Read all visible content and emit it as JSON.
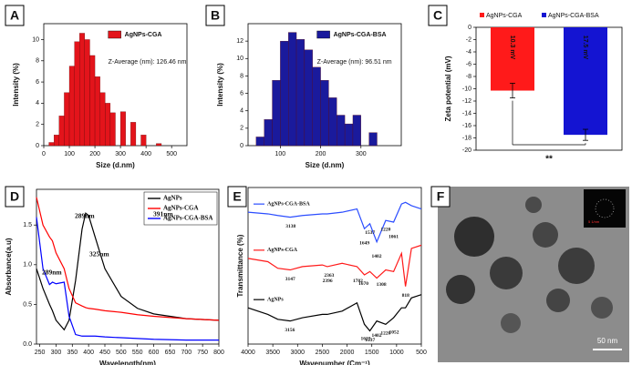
{
  "chart_data": [
    {
      "type": "histogram",
      "panel": "A",
      "xlabel": "Size (d.nm)",
      "ylabel": "Intensity (%)",
      "annotation": "Z-Average (nm): 126.46 nm",
      "bins": [
        20,
        40,
        60,
        80,
        100,
        120,
        140,
        160,
        180,
        200,
        220,
        240,
        260,
        280,
        300,
        320,
        340,
        360,
        380,
        400,
        420,
        440,
        460
      ],
      "series": [
        {
          "name": "AgNPs-CGA",
          "color": "#e3141b",
          "values": [
            0.3,
            1,
            2.8,
            5,
            7.5,
            9.8,
            10.6,
            10,
            8.5,
            6.5,
            5,
            4,
            3.1,
            0,
            3.2,
            0,
            2.2,
            0,
            1,
            0,
            0,
            0.2
          ]
        }
      ],
      "xlim": [
        0,
        560
      ],
      "xticks": [
        0,
        100,
        200,
        300,
        400,
        500
      ],
      "ylim": [
        0,
        11.5
      ],
      "yticks": [
        0,
        2,
        4,
        6,
        8,
        10
      ]
    },
    {
      "type": "histogram",
      "panel": "B",
      "xlabel": "Size (d.nm)",
      "ylabel": "Intensity (%)",
      "annotation": "Z-Average (nm): 96.51 nm",
      "bins": [
        40,
        60,
        80,
        100,
        120,
        140,
        160,
        180,
        200,
        220,
        240,
        260,
        280,
        300,
        320,
        340
      ],
      "series": [
        {
          "name": "AgNPs-CGA-BSA",
          "color": "#1a1a9c",
          "values": [
            1,
            3,
            7.5,
            12,
            13,
            12.2,
            11,
            9,
            7.5,
            5.5,
            3.5,
            2.5,
            3.5,
            0,
            1.5
          ]
        }
      ],
      "xlim": [
        20,
        400
      ],
      "xticks": [
        100,
        200,
        300
      ],
      "ylim": [
        0,
        14
      ],
      "yticks": [
        0,
        2,
        4,
        6,
        8,
        10,
        12
      ]
    },
    {
      "type": "bar",
      "panel": "C",
      "ylabel": "Zeta potential (mV)",
      "annotation": "**",
      "categories": [
        "AgNPs-CGA",
        "AgNPs-CGA-BSA"
      ],
      "colors": [
        "#ff1a1a",
        "#1414d2"
      ],
      "values": [
        -10.3,
        -17.5
      ],
      "value_labels": [
        "10.3 mV",
        "17.5 mV"
      ],
      "errors": [
        1.2,
        0.9
      ],
      "ylim": [
        -20,
        0
      ],
      "yticks": [
        0,
        -2,
        -4,
        -6,
        -8,
        -10,
        -12,
        -14,
        -16,
        -18,
        -20
      ]
    },
    {
      "type": "line",
      "panel": "D",
      "xlabel": "Wavelength(nm)",
      "ylabel": "Absorbance(a.u)",
      "annotations": [
        "289nm",
        "325nm",
        "391nm",
        "289nm"
      ],
      "x": [
        240,
        260,
        280,
        289,
        300,
        325,
        340,
        360,
        380,
        391,
        400,
        420,
        450,
        500,
        550,
        600,
        700,
        800
      ],
      "series": [
        {
          "name": "AgNPs",
          "color": "#000000",
          "values": [
            0.95,
            0.7,
            0.5,
            0.42,
            0.3,
            0.18,
            0.3,
            0.8,
            1.45,
            1.65,
            1.62,
            1.35,
            0.95,
            0.6,
            0.45,
            0.38,
            0.32,
            0.3
          ]
        },
        {
          "name": "AgNPs-CGA",
          "color": "#ff0000",
          "values": [
            1.85,
            1.5,
            1.35,
            1.3,
            1.15,
            0.95,
            0.7,
            0.52,
            0.48,
            0.46,
            0.45,
            0.44,
            0.42,
            0.4,
            0.37,
            0.35,
            0.32,
            0.3
          ]
        },
        {
          "name": "AgNPs-CGA-BSA",
          "color": "#0000ff",
          "values": [
            1.6,
            0.95,
            0.75,
            0.78,
            0.76,
            0.78,
            0.35,
            0.12,
            0.1,
            0.1,
            0.1,
            0.1,
            0.09,
            0.08,
            0.07,
            0.06,
            0.05,
            0.05
          ]
        }
      ],
      "xlim": [
        240,
        800
      ],
      "xticks": [
        250,
        300,
        350,
        400,
        450,
        500,
        550,
        600,
        650,
        700,
        750,
        800
      ],
      "ylim": [
        0,
        1.95
      ],
      "yticks": [
        {
          "value": 0,
          "label": "0.0"
        },
        {
          "value": 0.5,
          "label": "0.5"
        },
        {
          "value": 1,
          "label": "1.0"
        },
        {
          "value": 1.5,
          "label": "1.5"
        }
      ]
    },
    {
      "type": "line",
      "panel": "E",
      "xlabel": "Wavenumber (Cm⁻¹)",
      "ylabel": "Transmittance (%)",
      "x": [
        4000,
        3600,
        3400,
        3150,
        2900,
        2500,
        2400,
        2100,
        1800,
        1650,
        1540,
        1400,
        1220,
        1060,
        900,
        820,
        700,
        500
      ],
      "series": [
        {
          "name": "AgNPs-CGA-BSA",
          "color": "#2b4dff",
          "values": [
            80,
            79,
            78,
            77,
            78,
            79,
            79,
            80,
            82,
            70,
            73,
            62,
            75,
            74,
            85,
            86,
            84,
            82
          ],
          "annotations": [
            "3138",
            "1649",
            "1537",
            "1402",
            "1220",
            "1061"
          ]
        },
        {
          "name": "AgNPs-CGA",
          "color": "#ff1a1a",
          "values": [
            52,
            50,
            46,
            45,
            47,
            48,
            47,
            49,
            47,
            42,
            44,
            40,
            45,
            44,
            55,
            35,
            58,
            60
          ],
          "annotations": [
            "3147",
            "2396",
            "2363",
            "1782",
            "1670",
            "1308",
            "818"
          ]
        },
        {
          "name": "AgNPs",
          "color": "#000000",
          "values": [
            22,
            18,
            15,
            14,
            16,
            18,
            18,
            20,
            25,
            12,
            8,
            14,
            12,
            16,
            22,
            22,
            28,
            30
          ],
          "annotations": [
            "3156",
            "1623",
            "1537",
            "1402",
            "1220",
            "1052"
          ]
        }
      ],
      "xlim": [
        4000,
        500
      ],
      "xticks": [
        4000,
        3500,
        3000,
        2500,
        2000,
        1500,
        1000,
        500
      ],
      "ylim": [
        0,
        95
      ]
    }
  ],
  "image_panel": {
    "panel": "F",
    "scale_bar": "50 nm",
    "inset_scale": "5 1/nm"
  }
}
